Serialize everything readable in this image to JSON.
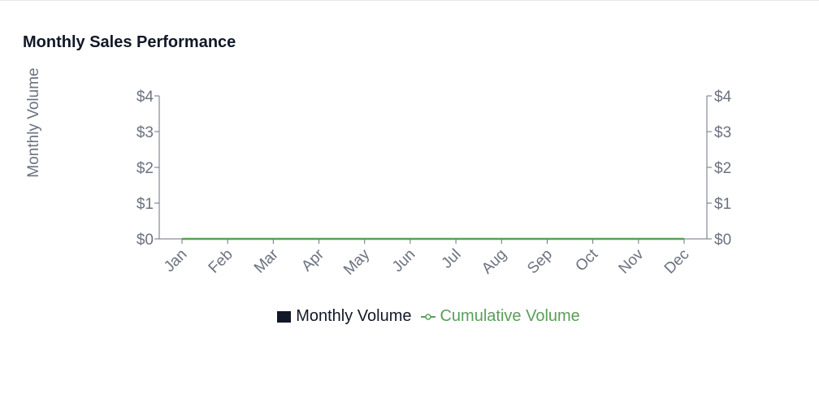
{
  "chart_data": {
    "type": "bar+line",
    "title": "Monthly Sales Performance",
    "ylabel": "Monthly Volume",
    "categories": [
      "Jan",
      "Feb",
      "Mar",
      "Apr",
      "May",
      "Jun",
      "Jul",
      "Aug",
      "Sep",
      "Oct",
      "Nov",
      "Dec"
    ],
    "series": [
      {
        "name": "Monthly Volume",
        "type": "bar",
        "color": "#111827",
        "values": [
          0,
          0,
          0,
          0,
          0,
          0,
          0,
          0,
          0,
          0,
          0,
          0
        ]
      },
      {
        "name": "Cumulative Volume",
        "type": "line",
        "color": "#5a9e5a",
        "values": [
          0,
          0,
          0,
          0,
          0,
          0,
          0,
          0,
          0,
          0,
          0,
          0
        ]
      }
    ],
    "left_axis": {
      "ticks": [
        0,
        1,
        2,
        3,
        4
      ],
      "labels": [
        "$0",
        "$1",
        "$2",
        "$3",
        "$4"
      ],
      "ylim": [
        0,
        4
      ]
    },
    "right_axis": {
      "ticks": [
        0,
        1,
        2,
        3,
        4
      ],
      "labels": [
        "$0",
        "$1",
        "$2",
        "$3",
        "$4"
      ],
      "ylim": [
        0,
        4
      ]
    },
    "grid": false,
    "legend_position": "bottom"
  }
}
